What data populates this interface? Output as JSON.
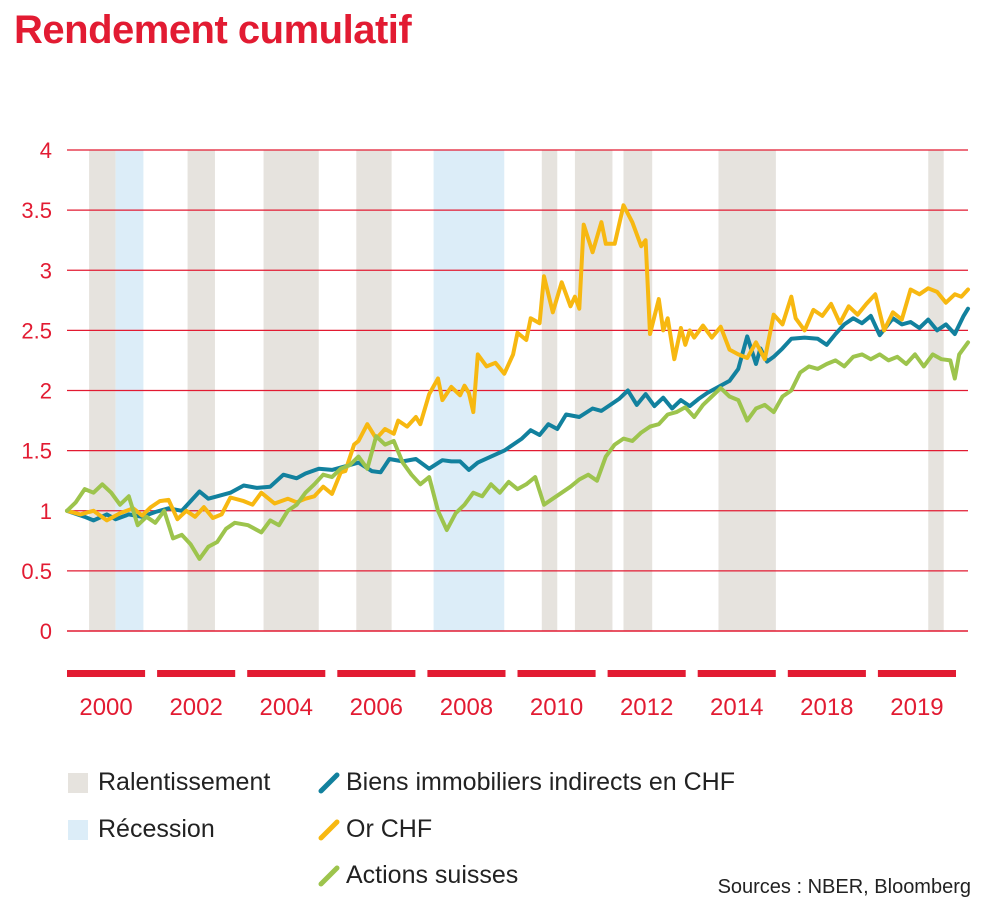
{
  "chart_data": {
    "type": "line",
    "title": "Rendement cumulatif",
    "xlabel": "",
    "ylabel": "",
    "ylim": [
      0,
      4
    ],
    "y_ticks": [
      "0",
      "0.5",
      "1",
      "1.5",
      "2",
      "2.5",
      "3",
      "3.5",
      "4"
    ],
    "x_tick_labels": [
      "2000",
      "2002",
      "2004",
      "2006",
      "2008",
      "2010",
      "2012",
      "2014",
      "2018",
      "2019"
    ],
    "x_axis_range": [
      1999.6,
      2020.0
    ],
    "bands": [
      {
        "type": "slowdown",
        "start": 2000.1,
        "end": 2000.7
      },
      {
        "type": "recession",
        "start": 2000.7,
        "end": 2001.33
      },
      {
        "type": "slowdown",
        "start": 2002.33,
        "end": 2002.95
      },
      {
        "type": "slowdown",
        "start": 2004.05,
        "end": 2005.3
      },
      {
        "type": "slowdown",
        "start": 2006.15,
        "end": 2006.95
      },
      {
        "type": "recession",
        "start": 2007.9,
        "end": 2009.5
      },
      {
        "type": "slowdown",
        "start": 2010.35,
        "end": 2010.7
      },
      {
        "type": "slowdown",
        "start": 2011.1,
        "end": 2011.95
      },
      {
        "type": "slowdown",
        "start": 2012.2,
        "end": 2012.85
      },
      {
        "type": "slowdown",
        "start": 2014.35,
        "end": 2015.65
      },
      {
        "type": "slowdown",
        "start": 2019.1,
        "end": 2019.45
      }
    ],
    "series": [
      {
        "name": "Biens immobiliers indirects en CHF",
        "color": "#12819e",
        "x": [
          1999.6,
          2000.0,
          2000.2,
          2000.5,
          2000.7,
          2001.0,
          2001.3,
          2001.6,
          2001.9,
          2002.2,
          2002.4,
          2002.6,
          2002.8,
          2003.0,
          2003.3,
          2003.6,
          2003.9,
          2004.2,
          2004.5,
          2004.8,
          2005.0,
          2005.3,
          2005.6,
          2005.9,
          2006.2,
          2006.5,
          2006.7,
          2006.9,
          2007.2,
          2007.5,
          2007.8,
          2008.1,
          2008.3,
          2008.5,
          2008.7,
          2008.9,
          2009.2,
          2009.5,
          2009.7,
          2009.9,
          2010.1,
          2010.3,
          2010.5,
          2010.7,
          2010.9,
          2011.2,
          2011.5,
          2011.7,
          2011.9,
          2012.1,
          2012.3,
          2012.5,
          2012.7,
          2012.9,
          2013.1,
          2013.3,
          2013.5,
          2013.7,
          2013.9,
          2014.1,
          2014.3,
          2014.6,
          2014.8,
          2015.0,
          2015.2,
          2015.3,
          2015.45,
          2015.6,
          2015.8,
          2016.0,
          2016.3,
          2016.6,
          2016.8,
          2017.0,
          2017.2,
          2017.4,
          2017.6,
          2017.8,
          2018.0,
          2018.3,
          2018.5,
          2018.7,
          2018.9,
          2019.1,
          2019.3,
          2019.5,
          2019.7,
          2019.9,
          2020.0
        ],
        "values": [
          1.0,
          0.95,
          0.92,
          0.97,
          0.93,
          0.97,
          0.95,
          0.99,
          1.02,
          1.0,
          1.08,
          1.16,
          1.1,
          1.12,
          1.15,
          1.21,
          1.19,
          1.2,
          1.3,
          1.27,
          1.31,
          1.35,
          1.34,
          1.37,
          1.4,
          1.33,
          1.32,
          1.43,
          1.41,
          1.43,
          1.35,
          1.42,
          1.41,
          1.41,
          1.34,
          1.4,
          1.45,
          1.5,
          1.55,
          1.6,
          1.67,
          1.63,
          1.72,
          1.68,
          1.8,
          1.78,
          1.85,
          1.83,
          1.88,
          1.93,
          2.0,
          1.88,
          1.97,
          1.87,
          1.94,
          1.85,
          1.92,
          1.87,
          1.93,
          1.98,
          2.02,
          2.08,
          2.18,
          2.45,
          2.22,
          2.35,
          2.24,
          2.28,
          2.35,
          2.43,
          2.44,
          2.43,
          2.38,
          2.47,
          2.55,
          2.6,
          2.56,
          2.62,
          2.46,
          2.6,
          2.55,
          2.57,
          2.52,
          2.59,
          2.5,
          2.55,
          2.47,
          2.62,
          2.68
        ]
      },
      {
        "name": "Or CHF",
        "color": "#f7b811",
        "x": [
          1999.6,
          1999.9,
          2000.2,
          2000.5,
          2000.8,
          2001.1,
          2001.3,
          2001.5,
          2001.7,
          2001.9,
          2002.1,
          2002.3,
          2002.5,
          2002.7,
          2002.9,
          2003.1,
          2003.3,
          2003.6,
          2003.8,
          2004.0,
          2004.3,
          2004.6,
          2004.8,
          2005.0,
          2005.2,
          2005.4,
          2005.6,
          2005.8,
          2005.9,
          2006.1,
          2006.2,
          2006.4,
          2006.6,
          2006.8,
          2007.0,
          2007.1,
          2007.3,
          2007.5,
          2007.6,
          2007.8,
          2008.0,
          2008.1,
          2008.3,
          2008.5,
          2008.6,
          2008.7,
          2008.8,
          2008.9,
          2009.1,
          2009.3,
          2009.5,
          2009.7,
          2009.8,
          2010.0,
          2010.1,
          2010.3,
          2010.4,
          2010.6,
          2010.8,
          2011.0,
          2011.1,
          2011.2,
          2011.3,
          2011.5,
          2011.7,
          2011.8,
          2012.0,
          2012.2,
          2012.4,
          2012.6,
          2012.7,
          2012.8,
          2013.0,
          2013.1,
          2013.2,
          2013.35,
          2013.5,
          2013.6,
          2013.7,
          2013.8,
          2014.0,
          2014.2,
          2014.4,
          2014.6,
          2014.8,
          2015.0,
          2015.2,
          2015.4,
          2015.6,
          2015.8,
          2016.0,
          2016.1,
          2016.3,
          2016.5,
          2016.7,
          2016.9,
          2017.1,
          2017.3,
          2017.5,
          2017.7,
          2017.9,
          2018.1,
          2018.3,
          2018.5,
          2018.7,
          2018.9,
          2019.1,
          2019.3,
          2019.5,
          2019.7,
          2019.85,
          2020.0
        ],
        "values": [
          1.0,
          0.97,
          1.0,
          0.92,
          0.98,
          1.02,
          0.96,
          1.03,
          1.08,
          1.09,
          0.93,
          1.0,
          0.95,
          1.03,
          0.94,
          0.97,
          1.11,
          1.08,
          1.05,
          1.15,
          1.06,
          1.1,
          1.07,
          1.1,
          1.12,
          1.2,
          1.14,
          1.32,
          1.33,
          1.55,
          1.58,
          1.72,
          1.6,
          1.68,
          1.64,
          1.75,
          1.7,
          1.78,
          1.72,
          1.97,
          2.1,
          1.92,
          2.03,
          1.96,
          2.04,
          1.98,
          1.82,
          2.3,
          2.2,
          2.23,
          2.14,
          2.3,
          2.48,
          2.42,
          2.6,
          2.56,
          2.95,
          2.65,
          2.9,
          2.7,
          2.78,
          2.68,
          3.38,
          3.15,
          3.4,
          3.22,
          3.22,
          3.54,
          3.4,
          3.2,
          3.25,
          2.47,
          2.76,
          2.5,
          2.6,
          2.26,
          2.52,
          2.38,
          2.5,
          2.44,
          2.54,
          2.44,
          2.53,
          2.34,
          2.3,
          2.27,
          2.4,
          2.26,
          2.63,
          2.55,
          2.78,
          2.6,
          2.5,
          2.67,
          2.62,
          2.72,
          2.56,
          2.7,
          2.63,
          2.72,
          2.8,
          2.5,
          2.65,
          2.59,
          2.84,
          2.8,
          2.85,
          2.82,
          2.73,
          2.8,
          2.78,
          2.84
        ]
      },
      {
        "name": "Actions suisses",
        "color": "#9dc44d",
        "x": [
          1999.6,
          1999.8,
          2000.0,
          2000.2,
          2000.4,
          2000.6,
          2000.8,
          2001.0,
          2001.2,
          2001.4,
          2001.6,
          2001.8,
          2002.0,
          2002.2,
          2002.4,
          2002.6,
          2002.8,
          2003.0,
          2003.2,
          2003.4,
          2003.7,
          2004.0,
          2004.2,
          2004.4,
          2004.6,
          2004.8,
          2005.0,
          2005.2,
          2005.4,
          2005.6,
          2005.8,
          2006.0,
          2006.2,
          2006.4,
          2006.6,
          2006.8,
          2007.0,
          2007.2,
          2007.4,
          2007.6,
          2007.8,
          2008.0,
          2008.2,
          2008.4,
          2008.6,
          2008.8,
          2009.0,
          2009.2,
          2009.4,
          2009.6,
          2009.8,
          2010.0,
          2010.2,
          2010.4,
          2010.6,
          2010.8,
          2011.0,
          2011.2,
          2011.4,
          2011.6,
          2011.8,
          2012.0,
          2012.2,
          2012.4,
          2012.6,
          2012.8,
          2013.0,
          2013.2,
          2013.4,
          2013.6,
          2013.8,
          2014.0,
          2014.2,
          2014.4,
          2014.6,
          2014.8,
          2015.0,
          2015.2,
          2015.4,
          2015.6,
          2015.8,
          2016.0,
          2016.2,
          2016.4,
          2016.6,
          2016.8,
          2017.0,
          2017.2,
          2017.4,
          2017.6,
          2017.8,
          2018.0,
          2018.2,
          2018.4,
          2018.6,
          2018.8,
          2019.0,
          2019.2,
          2019.4,
          2019.6,
          2019.7,
          2019.8,
          2019.9,
          2020.0
        ],
        "values": [
          1.0,
          1.07,
          1.18,
          1.15,
          1.22,
          1.15,
          1.05,
          1.12,
          0.88,
          0.95,
          0.9,
          1.0,
          0.77,
          0.8,
          0.72,
          0.6,
          0.7,
          0.74,
          0.85,
          0.9,
          0.88,
          0.82,
          0.92,
          0.88,
          1.0,
          1.05,
          1.15,
          1.22,
          1.3,
          1.28,
          1.35,
          1.38,
          1.45,
          1.35,
          1.62,
          1.55,
          1.58,
          1.4,
          1.3,
          1.22,
          1.28,
          1.0,
          0.84,
          0.98,
          1.05,
          1.15,
          1.12,
          1.22,
          1.15,
          1.24,
          1.18,
          1.22,
          1.28,
          1.05,
          1.1,
          1.15,
          1.2,
          1.26,
          1.3,
          1.25,
          1.45,
          1.55,
          1.6,
          1.58,
          1.65,
          1.7,
          1.72,
          1.8,
          1.82,
          1.86,
          1.78,
          1.88,
          1.95,
          2.02,
          1.95,
          1.92,
          1.75,
          1.85,
          1.88,
          1.82,
          1.95,
          2.0,
          2.15,
          2.2,
          2.18,
          2.22,
          2.25,
          2.2,
          2.28,
          2.3,
          2.26,
          2.3,
          2.25,
          2.28,
          2.22,
          2.3,
          2.2,
          2.3,
          2.26,
          2.25,
          2.1,
          2.3,
          2.35,
          2.4
        ]
      }
    ]
  },
  "legend": {
    "slowdown_label": "Ralentissement",
    "recession_label": "Récession",
    "slowdown_color": "#e6e3de",
    "recession_color": "#dcedf8"
  },
  "sources": "Sources : NBER, Bloomberg",
  "colors": {
    "accent": "#e21b32",
    "grid": "#e21b32"
  }
}
